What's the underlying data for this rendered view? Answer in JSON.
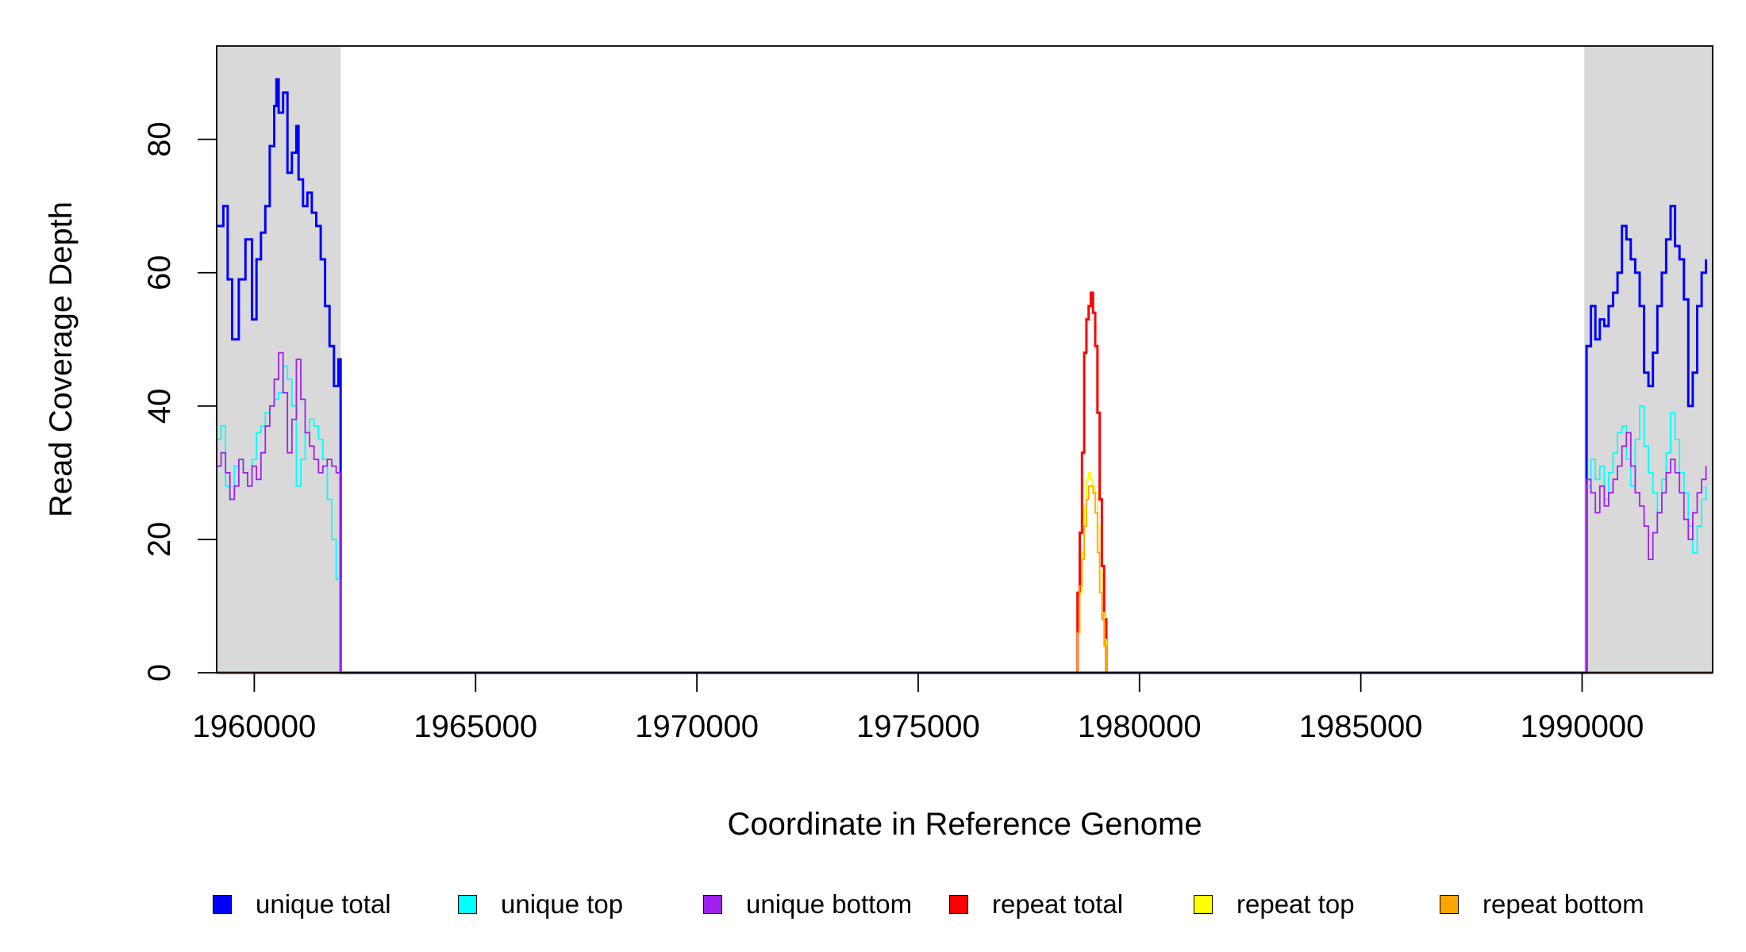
{
  "chart_data": {
    "type": "line",
    "title": "",
    "xlabel": "Coordinate in Reference Genome",
    "ylabel": "Read Coverage Depth",
    "xlim": [
      1959150,
      1992950
    ],
    "ylim": [
      0,
      94
    ],
    "x_ticks": [
      1960000,
      1965000,
      1970000,
      1975000,
      1980000,
      1985000,
      1990000
    ],
    "x_tick_labels": [
      "1960000",
      "1965000",
      "1970000",
      "1975000",
      "1980000",
      "1985000",
      "1990000"
    ],
    "y_ticks": [
      0,
      20,
      40,
      60,
      80
    ],
    "y_tick_labels": [
      "0",
      "20",
      "40",
      "60",
      "80"
    ],
    "shaded_regions": [
      [
        1959150,
        1961950
      ],
      [
        1990050,
        1992950
      ]
    ],
    "legend_position": "bottom",
    "series": [
      {
        "name": "unique total",
        "color": "#0000ff",
        "points": [
          [
            1959150,
            67
          ],
          [
            1959300,
            70
          ],
          [
            1959400,
            59
          ],
          [
            1959500,
            50
          ],
          [
            1959650,
            59
          ],
          [
            1959800,
            65
          ],
          [
            1959950,
            53
          ],
          [
            1960050,
            62
          ],
          [
            1960150,
            66
          ],
          [
            1960250,
            70
          ],
          [
            1960350,
            79
          ],
          [
            1960450,
            85
          ],
          [
            1960500,
            89
          ],
          [
            1960550,
            84
          ],
          [
            1960650,
            87
          ],
          [
            1960750,
            75
          ],
          [
            1960850,
            78
          ],
          [
            1960950,
            82
          ],
          [
            1961000,
            74
          ],
          [
            1961100,
            70
          ],
          [
            1961200,
            72
          ],
          [
            1961300,
            69
          ],
          [
            1961400,
            67
          ],
          [
            1961500,
            62
          ],
          [
            1961600,
            55
          ],
          [
            1961700,
            49
          ],
          [
            1961800,
            43
          ],
          [
            1961900,
            47
          ],
          [
            1961950,
            0
          ],
          [
            1990050,
            0
          ],
          [
            1990100,
            49
          ],
          [
            1990200,
            55
          ],
          [
            1990300,
            50
          ],
          [
            1990400,
            53
          ],
          [
            1990500,
            52
          ],
          [
            1990600,
            55
          ],
          [
            1990700,
            57
          ],
          [
            1990800,
            60
          ],
          [
            1990900,
            67
          ],
          [
            1991000,
            65
          ],
          [
            1991100,
            62
          ],
          [
            1991200,
            60
          ],
          [
            1991300,
            55
          ],
          [
            1991400,
            45
          ],
          [
            1991500,
            43
          ],
          [
            1991600,
            48
          ],
          [
            1991700,
            55
          ],
          [
            1991800,
            60
          ],
          [
            1991900,
            65
          ],
          [
            1992000,
            70
          ],
          [
            1992100,
            64
          ],
          [
            1992200,
            62
          ],
          [
            1992300,
            56
          ],
          [
            1992400,
            40
          ],
          [
            1992500,
            45
          ],
          [
            1992600,
            55
          ],
          [
            1992700,
            60
          ],
          [
            1992800,
            62
          ]
        ]
      },
      {
        "name": "unique top",
        "color": "#00ffff",
        "points": [
          [
            1959150,
            35
          ],
          [
            1959250,
            37
          ],
          [
            1959350,
            28
          ],
          [
            1959450,
            26
          ],
          [
            1959550,
            31
          ],
          [
            1959650,
            32
          ],
          [
            1959750,
            30
          ],
          [
            1959850,
            28
          ],
          [
            1959950,
            32
          ],
          [
            1960050,
            36
          ],
          [
            1960150,
            37
          ],
          [
            1960250,
            39
          ],
          [
            1960350,
            40
          ],
          [
            1960450,
            41
          ],
          [
            1960550,
            42
          ],
          [
            1960650,
            46
          ],
          [
            1960750,
            44
          ],
          [
            1960850,
            40
          ],
          [
            1960950,
            28
          ],
          [
            1961050,
            32
          ],
          [
            1961150,
            36
          ],
          [
            1961250,
            38
          ],
          [
            1961350,
            37
          ],
          [
            1961450,
            35
          ],
          [
            1961550,
            32
          ],
          [
            1961650,
            26
          ],
          [
            1961750,
            20
          ],
          [
            1961850,
            14
          ],
          [
            1961950,
            0
          ],
          [
            1990050,
            0
          ],
          [
            1990100,
            28
          ],
          [
            1990200,
            32
          ],
          [
            1990300,
            29
          ],
          [
            1990400,
            31
          ],
          [
            1990500,
            26
          ],
          [
            1990600,
            30
          ],
          [
            1990700,
            33
          ],
          [
            1990800,
            36
          ],
          [
            1990900,
            37
          ],
          [
            1991000,
            32
          ],
          [
            1991100,
            28
          ],
          [
            1991200,
            35
          ],
          [
            1991300,
            40
          ],
          [
            1991400,
            34
          ],
          [
            1991500,
            30
          ],
          [
            1991600,
            27
          ],
          [
            1991700,
            24
          ],
          [
            1991800,
            29
          ],
          [
            1991900,
            33
          ],
          [
            1992000,
            39
          ],
          [
            1992100,
            35
          ],
          [
            1992200,
            30
          ],
          [
            1992300,
            27
          ],
          [
            1992400,
            22
          ],
          [
            1992500,
            18
          ],
          [
            1992600,
            22
          ],
          [
            1992700,
            26
          ],
          [
            1992800,
            28
          ]
        ]
      },
      {
        "name": "unique bottom",
        "color": "#a020f0",
        "points": [
          [
            1959150,
            31
          ],
          [
            1959250,
            33
          ],
          [
            1959350,
            30
          ],
          [
            1959450,
            26
          ],
          [
            1959550,
            28
          ],
          [
            1959650,
            32
          ],
          [
            1959750,
            30
          ],
          [
            1959850,
            28
          ],
          [
            1959950,
            31
          ],
          [
            1960050,
            29
          ],
          [
            1960150,
            33
          ],
          [
            1960250,
            37
          ],
          [
            1960350,
            40
          ],
          [
            1960450,
            44
          ],
          [
            1960550,
            48
          ],
          [
            1960650,
            42
          ],
          [
            1960750,
            33
          ],
          [
            1960850,
            38
          ],
          [
            1960950,
            47
          ],
          [
            1961050,
            41
          ],
          [
            1961150,
            36
          ],
          [
            1961250,
            34
          ],
          [
            1961350,
            32
          ],
          [
            1961450,
            30
          ],
          [
            1961550,
            31
          ],
          [
            1961650,
            32
          ],
          [
            1961750,
            31
          ],
          [
            1961850,
            30
          ],
          [
            1961950,
            0
          ],
          [
            1990050,
            0
          ],
          [
            1990100,
            29
          ],
          [
            1990200,
            27
          ],
          [
            1990300,
            24
          ],
          [
            1990400,
            28
          ],
          [
            1990500,
            25
          ],
          [
            1990600,
            27
          ],
          [
            1990700,
            29
          ],
          [
            1990800,
            31
          ],
          [
            1990900,
            34
          ],
          [
            1991000,
            36
          ],
          [
            1991100,
            31
          ],
          [
            1991200,
            27
          ],
          [
            1991300,
            25
          ],
          [
            1991400,
            22
          ],
          [
            1991500,
            17
          ],
          [
            1991600,
            21
          ],
          [
            1991700,
            24
          ],
          [
            1991800,
            27
          ],
          [
            1991900,
            30
          ],
          [
            1992000,
            32
          ],
          [
            1992100,
            30
          ],
          [
            1992200,
            27
          ],
          [
            1992300,
            23
          ],
          [
            1992400,
            20
          ],
          [
            1992500,
            24
          ],
          [
            1992600,
            27
          ],
          [
            1992700,
            29
          ],
          [
            1992800,
            31
          ]
        ]
      },
      {
        "name": "repeat total",
        "color": "#ff0000",
        "points": [
          [
            1959150,
            0
          ],
          [
            1978550,
            0
          ],
          [
            1978600,
            12
          ],
          [
            1978650,
            21
          ],
          [
            1978700,
            33
          ],
          [
            1978750,
            48
          ],
          [
            1978800,
            53
          ],
          [
            1978850,
            55
          ],
          [
            1978900,
            57
          ],
          [
            1978950,
            54
          ],
          [
            1979000,
            49
          ],
          [
            1979050,
            39
          ],
          [
            1979100,
            26
          ],
          [
            1979150,
            16
          ],
          [
            1979200,
            8
          ],
          [
            1979250,
            0
          ],
          [
            1992950,
            0
          ]
        ]
      },
      {
        "name": "repeat top",
        "color": "#ffff00",
        "points": [
          [
            1959150,
            0
          ],
          [
            1978550,
            0
          ],
          [
            1978600,
            6
          ],
          [
            1978650,
            12
          ],
          [
            1978700,
            18
          ],
          [
            1978750,
            25
          ],
          [
            1978800,
            29
          ],
          [
            1978850,
            30
          ],
          [
            1978900,
            29
          ],
          [
            1978950,
            28
          ],
          [
            1979000,
            27
          ],
          [
            1979050,
            22
          ],
          [
            1979100,
            15
          ],
          [
            1979150,
            9
          ],
          [
            1979200,
            5
          ],
          [
            1979250,
            0
          ],
          [
            1992950,
            0
          ]
        ]
      },
      {
        "name": "repeat bottom",
        "color": "#ffa500",
        "points": [
          [
            1959150,
            0
          ],
          [
            1978550,
            0
          ],
          [
            1978600,
            6
          ],
          [
            1978650,
            13
          ],
          [
            1978700,
            17
          ],
          [
            1978750,
            22
          ],
          [
            1978800,
            26
          ],
          [
            1978850,
            28
          ],
          [
            1978900,
            28
          ],
          [
            1978950,
            27
          ],
          [
            1979000,
            24
          ],
          [
            1979050,
            18
          ],
          [
            1979100,
            12
          ],
          [
            1979150,
            8
          ],
          [
            1979200,
            4
          ],
          [
            1979250,
            0
          ],
          [
            1992950,
            0
          ]
        ]
      }
    ]
  }
}
